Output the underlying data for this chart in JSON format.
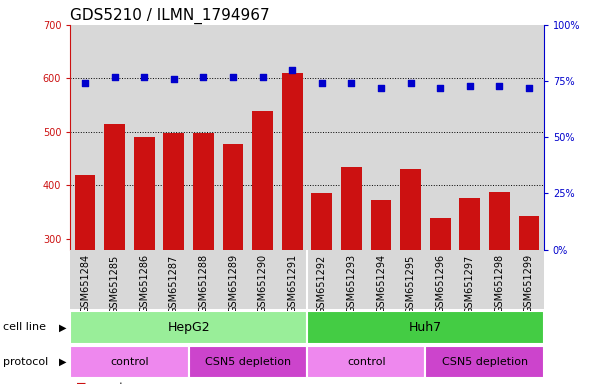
{
  "title": "GDS5210 / ILMN_1794967",
  "samples": [
    "GSM651284",
    "GSM651285",
    "GSM651286",
    "GSM651287",
    "GSM651288",
    "GSM651289",
    "GSM651290",
    "GSM651291",
    "GSM651292",
    "GSM651293",
    "GSM651294",
    "GSM651295",
    "GSM651296",
    "GSM651297",
    "GSM651298",
    "GSM651299"
  ],
  "counts": [
    420,
    515,
    490,
    498,
    498,
    478,
    540,
    610,
    385,
    435,
    373,
    430,
    340,
    377,
    388,
    343
  ],
  "percentile_ranks": [
    74,
    77,
    77,
    76,
    77,
    77,
    77,
    80,
    74,
    74,
    72,
    74,
    72,
    73,
    73,
    72
  ],
  "ylim_left": [
    280,
    700
  ],
  "ylim_right": [
    0,
    100
  ],
  "yticks_left": [
    300,
    400,
    500,
    600,
    700
  ],
  "yticks_right": [
    0,
    25,
    50,
    75,
    100
  ],
  "ytick_right_labels": [
    "0%",
    "25%",
    "50%",
    "75%",
    "100%"
  ],
  "bar_color": "#CC1111",
  "dot_color": "#0000CC",
  "cell_line_hepg2_color": "#99EE99",
  "cell_line_huh7_color": "#44CC44",
  "protocol_control_color": "#EE88EE",
  "protocol_csn5_color": "#CC44CC",
  "background_color": "#FFFFFF",
  "plot_bg_color": "#D8D8D8",
  "title_fontsize": 11,
  "tick_fontsize": 7,
  "label_fontsize": 8,
  "row_label_fontsize": 8,
  "cell_label_fontsize": 9
}
